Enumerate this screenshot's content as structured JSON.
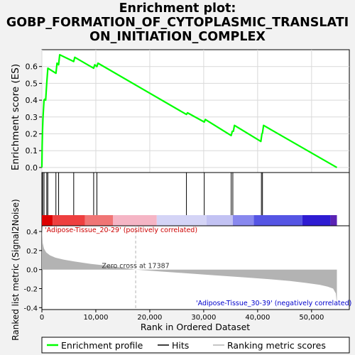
{
  "title_lines": [
    "Enrichment plot:",
    "GOBP_FORMATION_OF_CYTOPLASMIC_TRANSLATI",
    "ON_INITIATION_COMPLEX"
  ],
  "colors": {
    "es_line": "#00ff00",
    "hits": "#000000",
    "metric_fill": "#b3b3b3",
    "pos_label": "#cc0000",
    "neg_label": "#0000cc",
    "zero_cross_line": "#b3b3b3"
  },
  "chart_data": {
    "type": "line",
    "title": "Enrichment plot: GOBP_FORMATION_OF_CYTOPLASMIC_TRANSLATION_INITIATION_COMPLEX",
    "xlabel": "Rank in Ordered Dataset",
    "xlim": [
      0,
      57000
    ],
    "x_ticks": [
      0,
      10000,
      20000,
      30000,
      40000,
      50000
    ],
    "x_tick_labels": [
      "0",
      "10,000",
      "20,000",
      "30,000",
      "40,000",
      "50,000"
    ],
    "es_panel": {
      "ylabel": "Enrichment score (ES)",
      "ylim": [
        -0.03,
        0.7
      ],
      "y_ticks": [
        0.0,
        0.1,
        0.2,
        0.3,
        0.4,
        0.5,
        0.6
      ],
      "y_tick_labels": [
        "0.0",
        "0.1",
        "0.2",
        "0.3",
        "0.4",
        "0.5",
        "0.6"
      ],
      "grid": true,
      "series": [
        {
          "name": "Enrichment profile",
          "x": [
            0,
            50,
            120,
            200,
            300,
            400,
            500,
            700,
            900,
            1100,
            2600,
            2800,
            3100,
            3300,
            5900,
            6100,
            9600,
            9800,
            10200,
            10400,
            26800,
            27000,
            30100,
            30300,
            35100,
            35300,
            35500,
            35700,
            40600,
            40800,
            40900,
            41100,
            54700
          ],
          "y": [
            0.0,
            0.13,
            0.22,
            0.29,
            0.35,
            0.4,
            0.405,
            0.4,
            0.5,
            0.59,
            0.56,
            0.62,
            0.61,
            0.67,
            0.63,
            0.655,
            0.59,
            0.61,
            0.6,
            0.62,
            0.315,
            0.325,
            0.27,
            0.285,
            0.19,
            0.215,
            0.215,
            0.25,
            0.155,
            0.2,
            0.205,
            0.25,
            0.0
          ]
        }
      ]
    },
    "hits_panel": {
      "name": "Hits",
      "positions": [
        150,
        400,
        900,
        1100,
        2600,
        3100,
        5900,
        9600,
        10200,
        26800,
        30100,
        35100,
        35400,
        40700,
        40900
      ]
    },
    "metric_panel": {
      "name": "Ranking metric scores",
      "ylabel": "Ranked list metric (Signal2Noise)",
      "ylim": [
        -0.42,
        0.46
      ],
      "y_ticks": [
        -0.4,
        -0.2,
        0.0,
        0.2,
        0.4
      ],
      "y_tick_labels": [
        "-0.4",
        "-0.2",
        "0.0",
        "0.2",
        "0.4"
      ],
      "x": [
        0,
        150,
        400,
        800,
        1500,
        2500,
        4000,
        6000,
        9000,
        13000,
        17387,
        22000,
        27000,
        32000,
        37000,
        42000,
        46000,
        49000,
        51500,
        53000,
        54000,
        54500,
        54700
      ],
      "values": [
        0.45,
        0.28,
        0.22,
        0.18,
        0.15,
        0.125,
        0.105,
        0.085,
        0.06,
        0.035,
        0.0,
        -0.02,
        -0.04,
        -0.06,
        -0.08,
        -0.1,
        -0.12,
        -0.14,
        -0.16,
        -0.18,
        -0.2,
        -0.25,
        -0.36
      ],
      "zero_cross_label": "Zero cross at 17387",
      "zero_cross": 17387,
      "pos_label": "'Adipose-Tissue_20-29' (positively correlated)",
      "neg_label": "'Adipose-Tissue_30-39' (negatively correlated)"
    },
    "color_band": {
      "bounds": [
        0,
        2000,
        8000,
        13200,
        21300,
        30500,
        35400,
        39300,
        48300,
        53500,
        54700
      ],
      "colors": [
        "#dd0000",
        "#ee3f3f",
        "#f07575",
        "#f5b5c5",
        "#d4d4f6",
        "#c2c2f3",
        "#8888ee",
        "#5555e4",
        "#2e1cd2",
        "#5a23b4"
      ]
    },
    "legend": {
      "placement": "bottom",
      "entries": [
        {
          "label": "Enrichment profile",
          "style": "line",
          "color": "#00ff00"
        },
        {
          "label": "Hits",
          "style": "line",
          "color": "#000000"
        },
        {
          "label": "Ranking metric scores",
          "style": "line",
          "color": "#b3b3b3"
        }
      ]
    }
  }
}
